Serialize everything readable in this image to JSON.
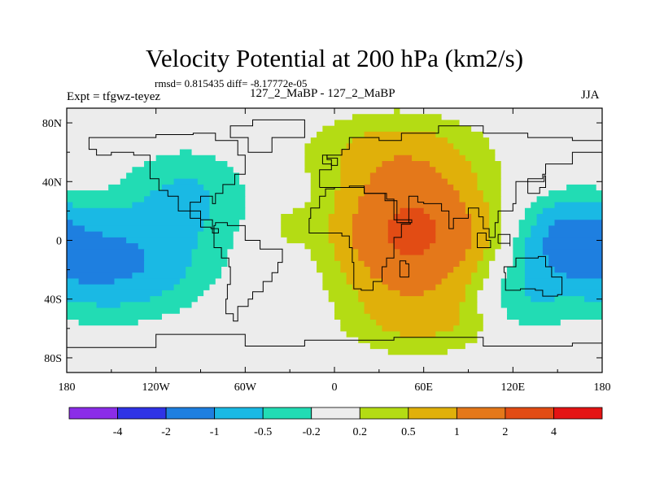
{
  "chart_data": {
    "type": "heatmap",
    "title": "Velocity Potential at 200 hPa (km2/s)",
    "stats_text": "rmsd= 0.815435 diff= -8.17772e-05",
    "left_label": "Expt = tfgwz-teyez",
    "center_label": "127_2_MaBP - 127_2_MaBP",
    "right_label": "JJA",
    "x_ticks": [
      {
        "value": -180,
        "label": "180"
      },
      {
        "value": -120,
        "label": "120W"
      },
      {
        "value": -60,
        "label": "60W"
      },
      {
        "value": 0,
        "label": "0"
      },
      {
        "value": 60,
        "label": "60E"
      },
      {
        "value": 120,
        "label": "120E"
      },
      {
        "value": 180,
        "label": "180"
      }
    ],
    "y_ticks": [
      {
        "value": 80,
        "label": "80N"
      },
      {
        "value": 40,
        "label": "40N"
      },
      {
        "value": 0,
        "label": "0"
      },
      {
        "value": -40,
        "label": "40S"
      },
      {
        "value": -80,
        "label": "80S"
      }
    ],
    "xlim": [
      -180,
      180
    ],
    "ylim": [
      -90,
      90
    ],
    "colorbar": {
      "colors": [
        "#8b2de8",
        "#2f33e6",
        "#1e7fe0",
        "#1ab9e4",
        "#22dcb4",
        "#ececec",
        "#b4dc14",
        "#e0b00a",
        "#e4781a",
        "#e24c14",
        "#e41414"
      ],
      "labels": [
        "-4",
        "-2",
        "-1",
        "-0.5",
        "-0.2",
        "0.2",
        "0.5",
        "1",
        "2",
        "4"
      ]
    },
    "contour_levels": [
      -4,
      -2,
      -1,
      -0.5,
      -0.2,
      0.2,
      0.5,
      1,
      2,
      4
    ],
    "field_centers": [
      {
        "name": "positive maximum",
        "lon": 50,
        "lat": 5,
        "value": 2.2
      },
      {
        "name": "negative minimum (Pacific west)",
        "lon": -140,
        "lat": -15,
        "value": -1.1
      },
      {
        "name": "negative minimum (Pacific east)",
        "lon": 155,
        "lat": 0,
        "value": -1.1
      }
    ]
  }
}
